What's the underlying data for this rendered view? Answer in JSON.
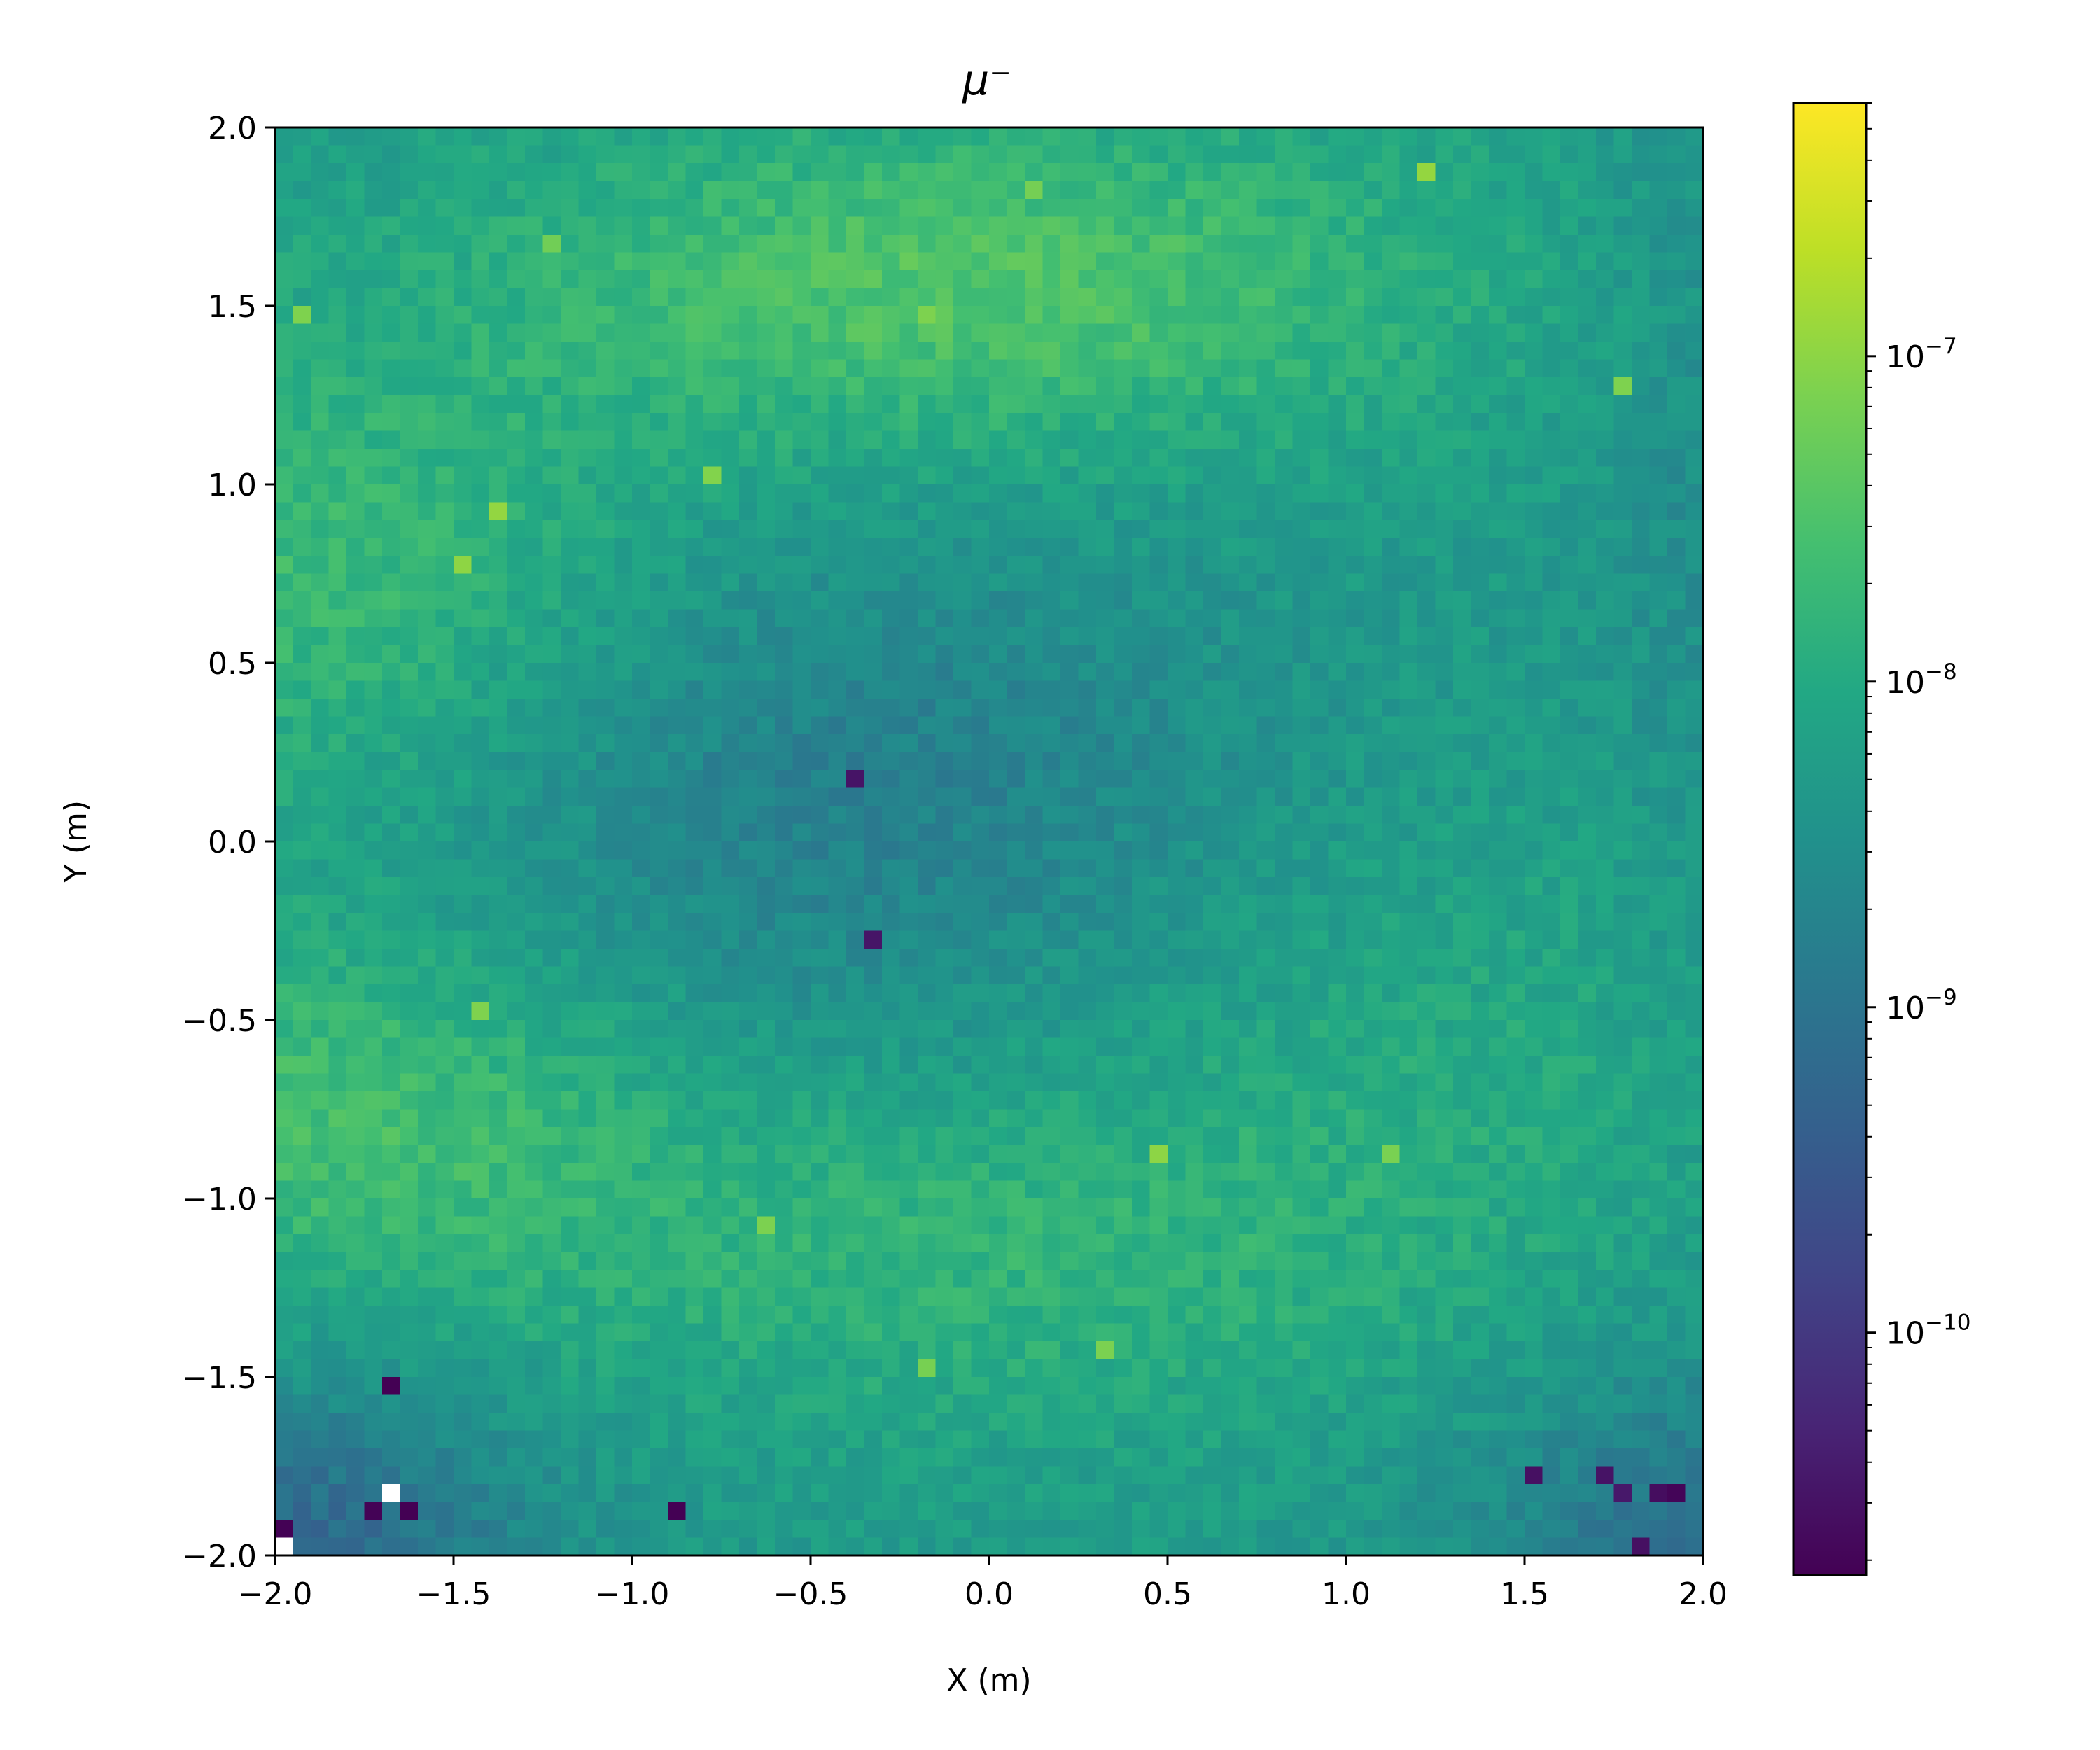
{
  "chart_data": {
    "type": "heatmap",
    "title": "μ⁻",
    "xlabel": "X (m)",
    "ylabel": "Y (m)",
    "xlim": [
      -2.0,
      2.0
    ],
    "ylim": [
      -2.0,
      2.0
    ],
    "grid": false,
    "bins": {
      "nx": 80,
      "ny": 80
    },
    "x_ticks": [
      "−2.0",
      "−1.5",
      "−1.0",
      "−0.5",
      "0.0",
      "0.5",
      "1.0",
      "1.5",
      "2.0"
    ],
    "y_ticks": [
      "−2.0",
      "−1.5",
      "−1.0",
      "−0.5",
      "0.0",
      "0.5",
      "1.0",
      "1.5",
      "2.0"
    ],
    "x_tick_values": [
      -2.0,
      -1.5,
      -1.0,
      -0.5,
      0.0,
      0.5,
      1.0,
      1.5,
      2.0
    ],
    "y_tick_values": [
      -2.0,
      -1.5,
      -1.0,
      -0.5,
      0.0,
      0.5,
      1.0,
      1.5,
      2.0
    ],
    "colorbar": {
      "scale": "log",
      "colormap": "viridis",
      "range": [
        1.8e-11,
        6e-07
      ],
      "ticks": [
        {
          "value": 1e-10,
          "base": "10",
          "exp": "−10"
        },
        {
          "value": 1e-09,
          "base": "10",
          "exp": "−9"
        },
        {
          "value": 1e-08,
          "base": "10",
          "exp": "−8"
        },
        {
          "value": 1e-07,
          "base": "10",
          "exp": "−7"
        }
      ]
    },
    "field_model": {
      "description": "log10 intensity field; rows listed top (Y=2) to bottom (Y=-2)",
      "sample_values_log10": {
        "top_center": -7.3,
        "center": -8.6,
        "left_upper": -7.6,
        "left_lower": -7.5,
        "bottom_center": -8.0,
        "bottom_corners": -9.0,
        "right_edge": -8.3
      }
    },
    "bright_pixels": [
      [
        -1.95,
        1.5
      ],
      [
        -1.5,
        0.78
      ],
      [
        -1.42,
        -0.46
      ],
      [
        -1.22,
        1.7
      ],
      [
        -0.17,
        1.46
      ],
      [
        1.75,
        1.26
      ],
      [
        1.22,
        1.87
      ],
      [
        0.1,
        1.82
      ],
      [
        -0.62,
        -1.07
      ],
      [
        -0.17,
        -1.46
      ],
      [
        0.34,
        -1.42
      ],
      [
        0.46,
        -0.9
      ],
      [
        1.1,
        -0.9
      ],
      [
        -1.35,
        0.95
      ],
      [
        -0.78,
        1.02
      ]
    ],
    "dark_pixels": [
      [
        -0.38,
        0.18
      ],
      [
        -0.34,
        -0.26
      ],
      [
        -1.74,
        -1.87
      ],
      [
        -1.6,
        -1.87
      ],
      [
        -1.98,
        -1.9
      ],
      [
        1.78,
        -1.83
      ],
      [
        1.85,
        -1.83
      ],
      [
        1.92,
        -1.83
      ],
      [
        1.5,
        -1.78
      ],
      [
        1.7,
        -1.78
      ],
      [
        1.82,
        -1.95
      ],
      [
        -0.9,
        -1.87
      ],
      [
        -1.66,
        -1.55
      ]
    ],
    "missing_pixels": [
      [
        -1.7,
        -1.82
      ],
      [
        -1.98,
        -1.98
      ]
    ]
  }
}
